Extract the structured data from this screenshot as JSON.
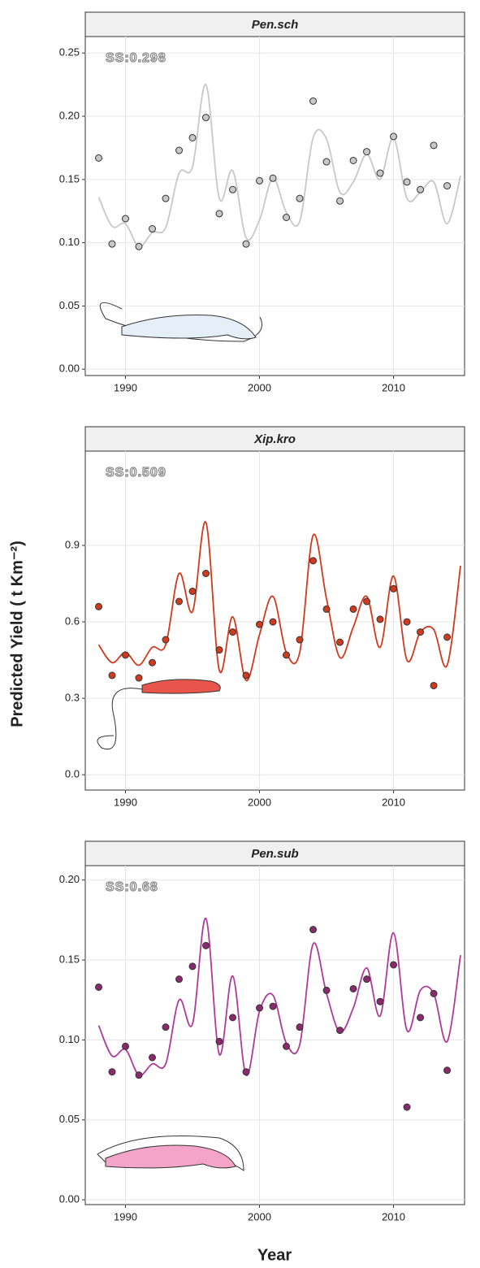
{
  "xlabel": "Year",
  "ylabel": "Predicted Yield ( t Km⁻²)",
  "chart_data": [
    {
      "type": "scatter",
      "title": "Pen.sch",
      "annotation": "SS:0.298",
      "color": "#c8c8c8",
      "grid": true,
      "xlim": [
        1987,
        2015.3
      ],
      "ylim": [
        -0.005,
        0.263
      ],
      "xticks": [
        1990,
        2000,
        2010
      ],
      "yticks": [
        {
          "value": 0,
          "label": "0.00"
        },
        0.05,
        {
          "value": 0.1,
          "label": "0.10"
        },
        0.15,
        {
          "value": 0.2,
          "label": "0.20"
        },
        0.25
      ],
      "x": [
        1988,
        1989,
        1990,
        1991,
        1992,
        1993,
        1994,
        1995,
        1996,
        1997,
        1998,
        1999,
        2000,
        2001,
        2002,
        2003,
        2004,
        2005,
        2006,
        2007,
        2008,
        2009,
        2010,
        2011,
        2012,
        2013,
        2014
      ],
      "values": [
        0.167,
        0.099,
        0.119,
        0.097,
        0.111,
        0.135,
        0.173,
        0.183,
        0.199,
        0.123,
        0.142,
        0.099,
        0.149,
        0.151,
        0.12,
        0.135,
        0.212,
        0.164,
        0.133,
        0.165,
        0.172,
        0.155,
        0.184,
        0.148,
        0.142,
        0.177,
        0.145
      ],
      "line": {
        "color": "#c8c8c8",
        "x": [
          1988,
          1989,
          1990,
          1991,
          1992,
          1993,
          1994,
          1995,
          1996,
          1997,
          1998,
          1999,
          2000,
          2001,
          2002,
          2003,
          2004,
          2005,
          2006,
          2007,
          2008,
          2009,
          2010,
          2011,
          2012,
          2013,
          2014,
          2015
        ],
        "values": [
          0.136,
          0.113,
          0.115,
          0.097,
          0.108,
          0.112,
          0.155,
          0.16,
          0.225,
          0.135,
          0.157,
          0.104,
          0.118,
          0.151,
          0.124,
          0.117,
          0.183,
          0.182,
          0.14,
          0.148,
          0.17,
          0.15,
          0.183,
          0.135,
          0.14,
          0.148,
          0.115,
          0.153
        ]
      }
    },
    {
      "type": "scatter",
      "title": "Xip.kro",
      "annotation": "SS:0.509",
      "color": "#d13a1c",
      "grid": true,
      "xlim": [
        1987,
        2015.3
      ],
      "ylim": [
        -0.06,
        1.27
      ],
      "xticks": [
        1990,
        2000,
        2010
      ],
      "yticks": [
        {
          "value": 0,
          "label": "0.0"
        },
        0.3,
        0.6,
        0.9
      ],
      "x": [
        1988,
        1989,
        1990,
        1991,
        1992,
        1993,
        1994,
        1995,
        1996,
        1997,
        1998,
        1999,
        2000,
        2001,
        2002,
        2003,
        2004,
        2005,
        2006,
        2007,
        2008,
        2009,
        2010,
        2011,
        2012,
        2013,
        2014
      ],
      "values": [
        0.66,
        0.39,
        0.47,
        0.38,
        0.44,
        0.53,
        0.68,
        0.72,
        0.79,
        0.49,
        0.56,
        0.39,
        0.59,
        0.6,
        0.47,
        0.53,
        0.84,
        0.65,
        0.52,
        0.65,
        0.68,
        0.61,
        0.73,
        0.6,
        0.56,
        0.35,
        0.54
      ],
      "line": {
        "color": "#d13a1c",
        "x": [
          1988,
          1989,
          1990,
          1991,
          1992,
          1993,
          1994,
          1995,
          1996,
          1997,
          1998,
          1999,
          2000,
          2001,
          2002,
          2003,
          2004,
          2005,
          2006,
          2007,
          2008,
          2009,
          2010,
          2011,
          2012,
          2013,
          2014,
          2015
        ],
        "values": [
          0.51,
          0.44,
          0.48,
          0.43,
          0.5,
          0.51,
          0.79,
          0.64,
          0.99,
          0.41,
          0.62,
          0.37,
          0.55,
          0.7,
          0.48,
          0.48,
          0.94,
          0.69,
          0.46,
          0.58,
          0.7,
          0.5,
          0.78,
          0.45,
          0.56,
          0.57,
          0.43,
          0.82
        ]
      }
    },
    {
      "type": "scatter",
      "title": "Pen.sub",
      "annotation": "SS:0.68",
      "color": "#8a2a6e",
      "grid": true,
      "xlim": [
        1987,
        2015.3
      ],
      "ylim": [
        -0.003,
        0.209
      ],
      "xticks": [
        1990,
        2000,
        2010
      ],
      "yticks": [
        {
          "value": 0,
          "label": "0.00"
        },
        0.05,
        {
          "value": 0.1,
          "label": "0.10"
        },
        0.15,
        {
          "value": 0.2,
          "label": "0.20"
        }
      ],
      "x": [
        1988,
        1989,
        1990,
        1991,
        1992,
        1993,
        1994,
        1995,
        1996,
        1997,
        1998,
        1999,
        2000,
        2001,
        2002,
        2003,
        2004,
        2005,
        2006,
        2007,
        2008,
        2009,
        2010,
        2011,
        2012,
        2013,
        2014
      ],
      "values": [
        0.133,
        0.08,
        0.096,
        0.078,
        0.089,
        0.108,
        0.138,
        0.146,
        0.159,
        0.099,
        0.114,
        0.08,
        0.12,
        0.121,
        0.096,
        0.108,
        0.169,
        0.131,
        0.106,
        0.132,
        0.138,
        0.124,
        0.147,
        0.058,
        0.114,
        0.129,
        0.081
      ],
      "line": {
        "color": "#b03a9a",
        "x": [
          1988,
          1989,
          1990,
          1991,
          1992,
          1993,
          1994,
          1995,
          1996,
          1997,
          1998,
          1999,
          2000,
          2001,
          2002,
          2003,
          2004,
          2005,
          2006,
          2007,
          2008,
          2009,
          2010,
          2011,
          2012,
          2013,
          2014,
          2015
        ],
        "values": [
          0.109,
          0.09,
          0.094,
          0.078,
          0.085,
          0.085,
          0.125,
          0.11,
          0.176,
          0.091,
          0.14,
          0.078,
          0.118,
          0.128,
          0.098,
          0.097,
          0.16,
          0.129,
          0.105,
          0.12,
          0.145,
          0.115,
          0.167,
          0.106,
          0.131,
          0.129,
          0.099,
          0.153
        ]
      }
    }
  ]
}
